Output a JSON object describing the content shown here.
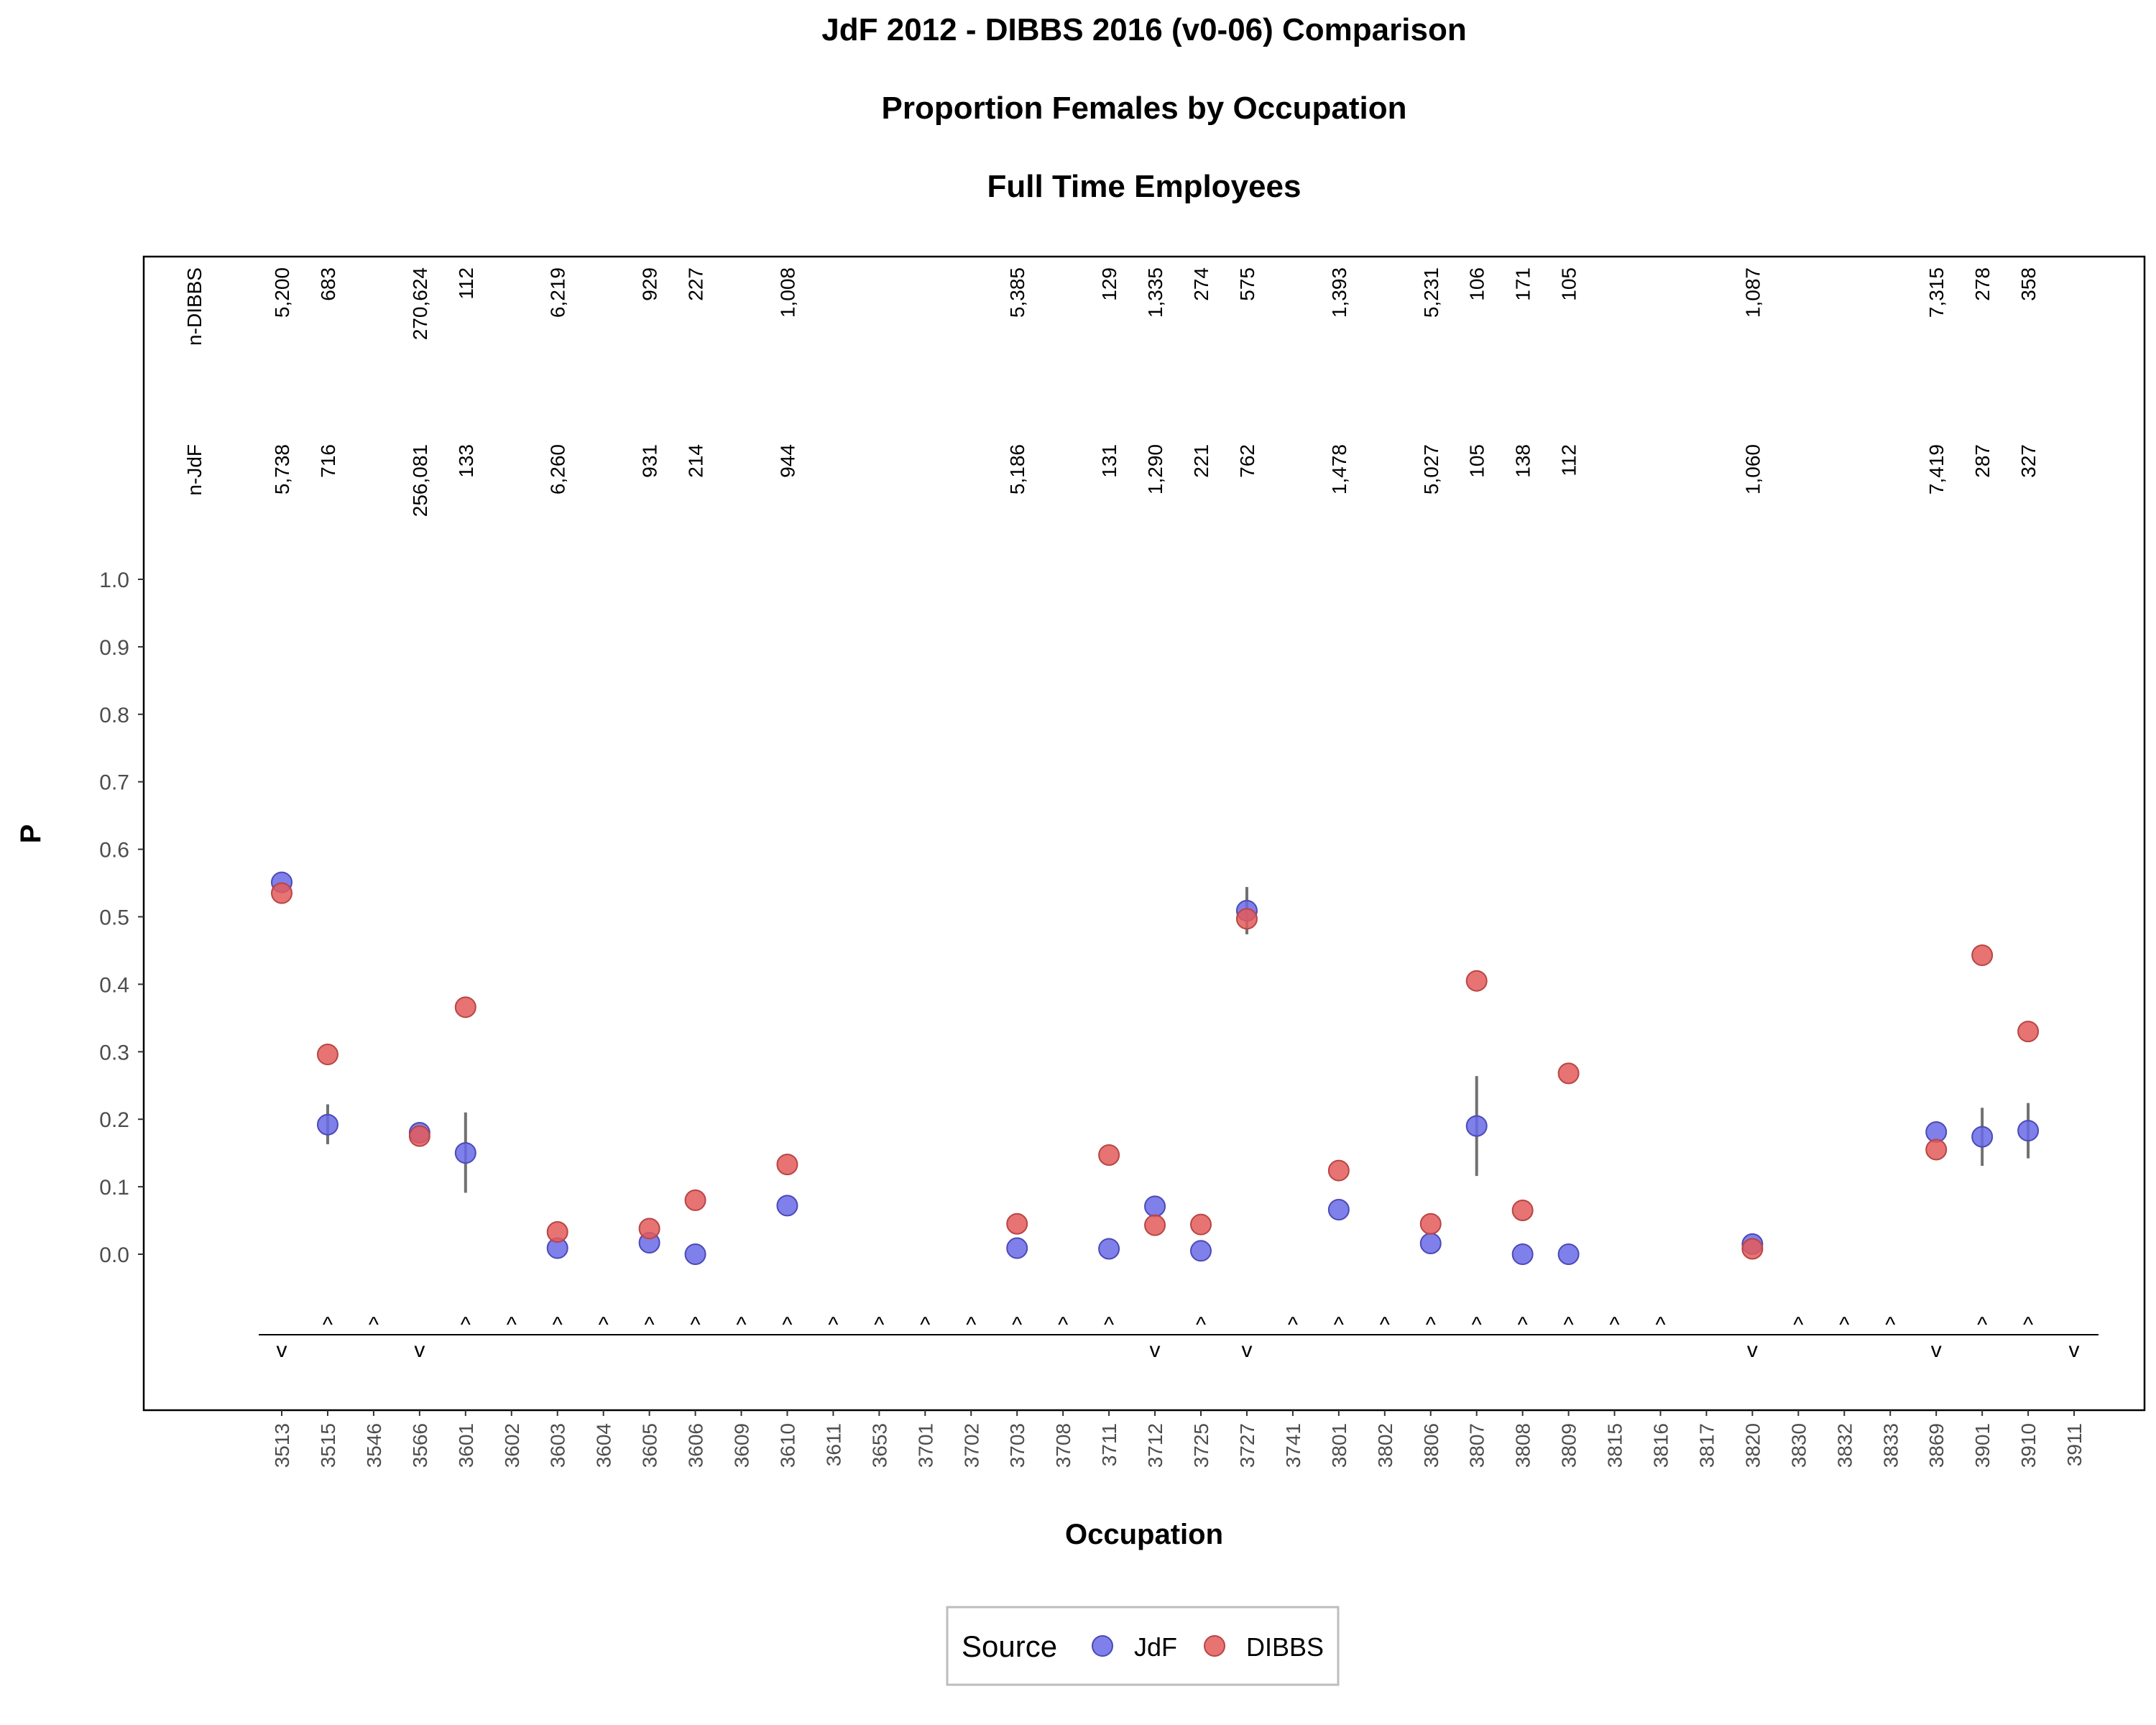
{
  "chart_data": {
    "type": "scatter",
    "title": "JdF 2012 - DIBBS 2016 (v0-06) Comparison",
    "subtitle": "Proportion Females by Occupation",
    "subtitle2": "Full Time Employees",
    "xlabel": "Occupation",
    "ylabel": "P",
    "ylim": [
      0,
      1
    ],
    "yticks": [
      "0.0",
      "0.1",
      "0.2",
      "0.3",
      "0.4",
      "0.5",
      "0.6",
      "0.7",
      "0.8",
      "0.9",
      "1.0"
    ],
    "categories": [
      "3513",
      "3515",
      "3546",
      "3566",
      "3601",
      "3602",
      "3603",
      "3604",
      "3605",
      "3606",
      "3609",
      "3610",
      "3611",
      "3653",
      "3701",
      "3702",
      "3703",
      "3708",
      "3711",
      "3712",
      "3725",
      "3727",
      "3741",
      "3801",
      "3802",
      "3806",
      "3807",
      "3808",
      "3809",
      "3815",
      "3816",
      "3817",
      "3820",
      "3830",
      "3832",
      "3833",
      "3869",
      "3901",
      "3910",
      "3911"
    ],
    "count_row_labels": {
      "dibbs": "n-DIBBS",
      "jdf": "n-JdF"
    },
    "n_dibbs": [
      "5,200",
      "683",
      "",
      "270,624",
      "112",
      "",
      "6,219",
      "",
      "929",
      "227",
      "",
      "1,008",
      "",
      "",
      "",
      "",
      "5,385",
      "",
      "129",
      "1,335",
      "274",
      "575",
      "",
      "1,393",
      "",
      "5,231",
      "106",
      "171",
      "105",
      "",
      "",
      "",
      "1,087",
      "",
      "",
      "",
      "7,315",
      "278",
      "358",
      ""
    ],
    "n_jdf": [
      "5,738",
      "716",
      "",
      "256,081",
      "133",
      "",
      "6,260",
      "",
      "931",
      "214",
      "",
      "944",
      "",
      "",
      "",
      "",
      "5,186",
      "",
      "131",
      "1,290",
      "221",
      "762",
      "",
      "1,478",
      "",
      "5,027",
      "105",
      "138",
      "112",
      "",
      "",
      "",
      "1,060",
      "",
      "",
      "",
      "7,419",
      "287",
      "327",
      ""
    ],
    "markers": [
      "v",
      "^",
      "^",
      "v",
      "^",
      "^",
      "^",
      "^",
      "^",
      "^",
      "^",
      "^",
      "^",
      "^",
      "^",
      "^",
      "^",
      "^",
      "^",
      "v",
      "^",
      "v",
      "^",
      "^",
      "^",
      "^",
      "^",
      "^",
      "^",
      "^",
      "^",
      "",
      "v",
      "^",
      "^",
      "^",
      "v",
      "^",
      "^",
      "v"
    ],
    "legend": {
      "title": "Source",
      "position": "bottom"
    },
    "series": [
      {
        "name": "JdF",
        "color": "#6a6ae6",
        "values": [
          0.551,
          0.192,
          null,
          0.18,
          0.15,
          null,
          0.009,
          null,
          0.017,
          0.0,
          null,
          0.072,
          null,
          null,
          null,
          null,
          0.009,
          null,
          0.008,
          0.071,
          0.005,
          0.509,
          null,
          0.066,
          null,
          0.016,
          0.19,
          0.0,
          0.0,
          null,
          null,
          null,
          0.015,
          null,
          null,
          null,
          0.181,
          0.174,
          0.183,
          null
        ],
        "error_low": [
          null,
          0.163,
          null,
          null,
          0.091,
          null,
          null,
          null,
          null,
          null,
          null,
          null,
          null,
          null,
          null,
          null,
          null,
          null,
          null,
          null,
          null,
          0.474,
          null,
          null,
          null,
          null,
          0.116,
          null,
          null,
          null,
          null,
          null,
          null,
          null,
          null,
          null,
          null,
          0.131,
          0.142,
          null
        ],
        "error_high": [
          null,
          0.222,
          null,
          null,
          0.21,
          null,
          null,
          null,
          null,
          null,
          null,
          null,
          null,
          null,
          null,
          null,
          null,
          null,
          null,
          null,
          null,
          0.544,
          null,
          null,
          null,
          null,
          0.264,
          null,
          null,
          null,
          null,
          null,
          null,
          null,
          null,
          null,
          null,
          0.217,
          0.224,
          null
        ]
      },
      {
        "name": "DIBBS",
        "color": "#e35a5a",
        "values": [
          0.535,
          0.296,
          null,
          0.175,
          0.366,
          null,
          0.033,
          null,
          0.038,
          0.08,
          null,
          0.133,
          null,
          null,
          null,
          null,
          0.045,
          null,
          0.147,
          0.043,
          0.044,
          0.497,
          null,
          0.124,
          null,
          0.045,
          0.405,
          0.065,
          0.268,
          null,
          null,
          null,
          0.008,
          null,
          null,
          null,
          0.155,
          0.443,
          0.33,
          null
        ]
      }
    ]
  }
}
